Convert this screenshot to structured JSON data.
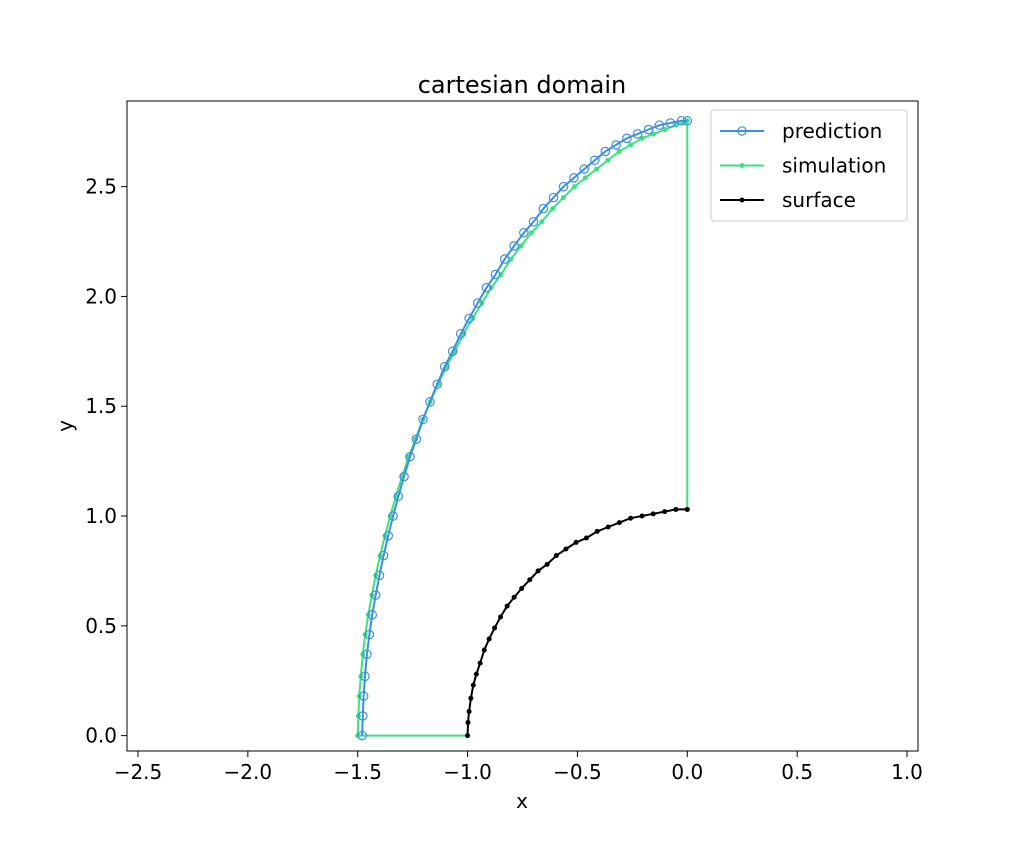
{
  "chart_data": {
    "type": "line",
    "title": "cartesian domain",
    "xlabel": "x",
    "ylabel": "y",
    "xlim": [
      -2.55,
      1.05
    ],
    "ylim": [
      -0.07,
      2.89
    ],
    "xticks": [
      -2.5,
      -2.0,
      -1.5,
      -1.0,
      -0.5,
      0.0,
      0.5,
      1.0
    ],
    "xtick_labels": [
      "−2.5",
      "−2.0",
      "−1.5",
      "−1.0",
      "−0.5",
      "0.0",
      "0.5",
      "1.0"
    ],
    "yticks": [
      0.0,
      0.5,
      1.0,
      1.5,
      2.0,
      2.5
    ],
    "ytick_labels": [
      "0.0",
      "0.5",
      "1.0",
      "1.5",
      "2.0",
      "2.5"
    ],
    "grid": false,
    "legend_position": "upper right",
    "series": [
      {
        "name": "prediction",
        "color": "#3b8fe0",
        "marker": "open-circle",
        "x": [
          -1.48,
          -1.477,
          -1.473,
          -1.467,
          -1.458,
          -1.447,
          -1.434,
          -1.418,
          -1.401,
          -1.382,
          -1.361,
          -1.339,
          -1.315,
          -1.289,
          -1.262,
          -1.233,
          -1.203,
          -1.171,
          -1.138,
          -1.104,
          -1.068,
          -1.031,
          -0.993,
          -0.954,
          -0.914,
          -0.873,
          -0.831,
          -0.788,
          -0.744,
          -0.7,
          -0.655,
          -0.609,
          -0.563,
          -0.516,
          -0.469,
          -0.421,
          -0.373,
          -0.324,
          -0.275,
          -0.226,
          -0.176,
          -0.127,
          -0.077,
          -0.026,
          0.0
        ],
        "y": [
          0.0,
          0.09,
          0.18,
          0.27,
          0.37,
          0.46,
          0.55,
          0.64,
          0.73,
          0.82,
          0.91,
          1.0,
          1.09,
          1.18,
          1.27,
          1.35,
          1.44,
          1.52,
          1.6,
          1.68,
          1.75,
          1.83,
          1.9,
          1.97,
          2.04,
          2.1,
          2.17,
          2.23,
          2.29,
          2.34,
          2.4,
          2.45,
          2.5,
          2.54,
          2.58,
          2.62,
          2.66,
          2.69,
          2.72,
          2.74,
          2.76,
          2.78,
          2.79,
          2.8,
          2.8
        ]
      },
      {
        "name": "simulation",
        "color": "#3de27e",
        "marker": "small-dot",
        "x": [
          -1.0,
          -1.5,
          -1.497,
          -1.493,
          -1.486,
          -1.477,
          -1.466,
          -1.452,
          -1.436,
          -1.418,
          -1.398,
          -1.376,
          -1.352,
          -1.326,
          -1.298,
          -1.268,
          -1.237,
          -1.204,
          -1.17,
          -1.134,
          -1.097,
          -1.058,
          -1.018,
          -0.977,
          -0.935,
          -0.892,
          -0.848,
          -0.803,
          -0.757,
          -0.71,
          -0.662,
          -0.613,
          -0.564,
          -0.514,
          -0.464,
          -0.413,
          -0.362,
          -0.31,
          -0.258,
          -0.206,
          -0.154,
          -0.102,
          -0.051,
          0.0,
          0.0,
          0.0
        ],
        "y": [
          0.0,
          0.0,
          0.09,
          0.18,
          0.27,
          0.37,
          0.46,
          0.55,
          0.64,
          0.73,
          0.82,
          0.91,
          1.0,
          1.09,
          1.18,
          1.27,
          1.35,
          1.44,
          1.52,
          1.6,
          1.68,
          1.75,
          1.83,
          1.9,
          1.97,
          2.04,
          2.1,
          2.17,
          2.23,
          2.29,
          2.34,
          2.4,
          2.45,
          2.5,
          2.54,
          2.58,
          2.62,
          2.66,
          2.69,
          2.72,
          2.74,
          2.76,
          2.78,
          2.8,
          1.03,
          1.03
        ]
      },
      {
        "name": "surface",
        "color": "#000000",
        "marker": "small-dot",
        "x": [
          -1.0,
          -0.998,
          -0.993,
          -0.985,
          -0.974,
          -0.96,
          -0.943,
          -0.924,
          -0.902,
          -0.877,
          -0.85,
          -0.82,
          -0.788,
          -0.754,
          -0.717,
          -0.679,
          -0.638,
          -0.596,
          -0.552,
          -0.506,
          -0.459,
          -0.41,
          -0.36,
          -0.309,
          -0.258,
          -0.206,
          -0.155,
          -0.103,
          -0.052,
          0.0
        ],
        "y": [
          0.0,
          0.06,
          0.11,
          0.17,
          0.23,
          0.28,
          0.33,
          0.39,
          0.44,
          0.49,
          0.54,
          0.59,
          0.63,
          0.67,
          0.71,
          0.75,
          0.78,
          0.82,
          0.85,
          0.88,
          0.9,
          0.93,
          0.95,
          0.97,
          0.99,
          1.0,
          1.01,
          1.02,
          1.03,
          1.03
        ]
      }
    ]
  }
}
